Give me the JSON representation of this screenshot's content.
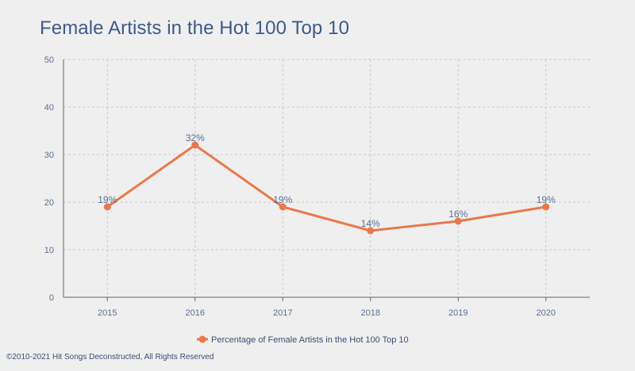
{
  "title": "Female Artists in the Hot 100 Top 10",
  "copyright": "©2010-2021 Hit Songs Deconstructed, All Rights Reserved",
  "colors": {
    "line": "#e8784c",
    "axis_text": "#5a6f95",
    "title": "#3c5a8a",
    "grid": "#c8c8c8",
    "background": "#efefef"
  },
  "chart_data": {
    "type": "line",
    "title": "Female Artists in the Hot 100 Top 10",
    "x": [
      "2015",
      "2016",
      "2017",
      "2018",
      "2019",
      "2020"
    ],
    "series": [
      {
        "name": "Percentage of Female Artists in the Hot 100 Top 10",
        "values": [
          19,
          32,
          19,
          14,
          16,
          19
        ],
        "labels": [
          "19%",
          "32%",
          "19%",
          "14%",
          "16%",
          "19%"
        ]
      }
    ],
    "yticks": [
      0,
      10,
      20,
      30,
      40,
      50
    ],
    "ylim": [
      0,
      50
    ],
    "xlabel": "",
    "ylabel": "",
    "grid": true,
    "legend": "bottom-center"
  }
}
